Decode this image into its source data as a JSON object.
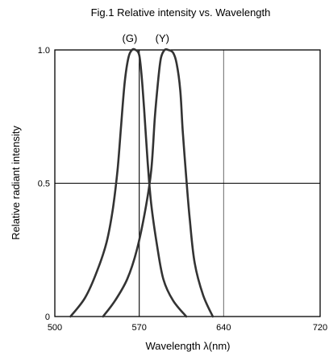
{
  "chart_data": {
    "type": "line",
    "title": "Fig.1 Relative intensity vs. Wavelength",
    "xlabel": "Wavelength λ(nm)",
    "ylabel": "Relative radiant intensity",
    "xlim": [
      500,
      720
    ],
    "ylim": [
      0,
      1.0
    ],
    "x_ticks": [
      500,
      570,
      640,
      720
    ],
    "x_tick_labels": [
      "500",
      "570",
      "640",
      "720"
    ],
    "y_ticks": [
      0,
      0.5,
      1.0
    ],
    "y_tick_labels": [
      "0",
      "0.5",
      "1.0"
    ],
    "grid": {
      "x": [
        570,
        640
      ],
      "y": [
        0.5
      ]
    },
    "line_color": "#333333",
    "series": [
      {
        "name": "(G)",
        "x": [
          513,
          525,
          535,
          543,
          548,
          552,
          555,
          558,
          561,
          564,
          567,
          570,
          572,
          574,
          577,
          580,
          585,
          590,
          598,
          609
        ],
        "y": [
          0.0,
          0.07,
          0.17,
          0.28,
          0.4,
          0.55,
          0.72,
          0.88,
          0.97,
          1.0,
          1.0,
          0.98,
          0.9,
          0.78,
          0.58,
          0.42,
          0.26,
          0.14,
          0.06,
          0.0
        ]
      },
      {
        "name": "(Y)",
        "x": [
          540,
          550,
          560,
          568,
          575,
          580,
          583,
          586,
          588,
          591,
          594,
          598,
          601,
          604,
          606,
          609,
          612,
          616,
          623,
          631
        ],
        "y": [
          0.0,
          0.06,
          0.14,
          0.25,
          0.4,
          0.55,
          0.75,
          0.9,
          0.97,
          1.0,
          1.0,
          0.99,
          0.95,
          0.85,
          0.7,
          0.52,
          0.36,
          0.2,
          0.08,
          0.0
        ]
      }
    ]
  }
}
